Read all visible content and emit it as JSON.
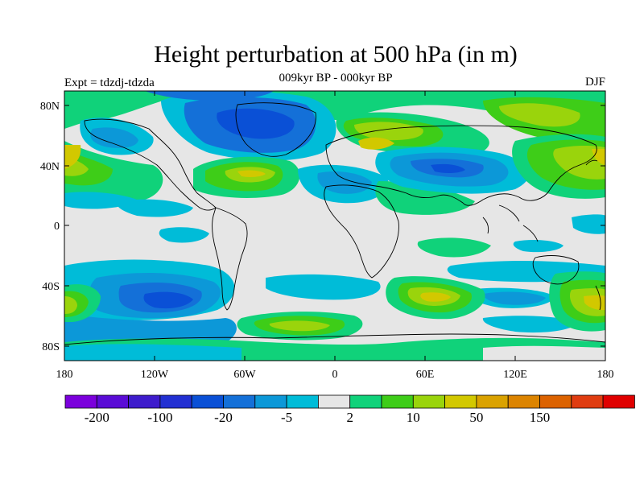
{
  "title": "Height perturbation at 500 hPa (in m)",
  "subtitle": "009kyr BP - 000kyr BP",
  "left_string": "Expt = tdzdj-tdzda",
  "right_string": "DJF",
  "lon_ticks": [
    "180",
    "120W",
    "60W",
    "0",
    "60E",
    "120E",
    "180"
  ],
  "lat_ticks": [
    "80N",
    "40N",
    "0",
    "40S",
    "80S"
  ],
  "colorbar": {
    "colors": [
      "#7b00dc",
      "#5a0cd6",
      "#3e1ccc",
      "#2230d2",
      "#0a50d6",
      "#1470d8",
      "#0c98d8",
      "#00bcd8",
      "#e6e6e6",
      "#10d27a",
      "#3ecd18",
      "#9ad40c",
      "#d2c800",
      "#daa200",
      "#dc8400",
      "#dc6200",
      "#e03c10",
      "#e00000"
    ],
    "labels": [
      {
        "text": "-200",
        "after_box": 1
      },
      {
        "text": "-100",
        "after_box": 3
      },
      {
        "text": "-20",
        "after_box": 5
      },
      {
        "text": "-5",
        "after_box": 7
      },
      {
        "text": "2",
        "after_box": 9
      },
      {
        "text": "10",
        "after_box": 11
      },
      {
        "text": "50",
        "after_box": 13
      },
      {
        "text": "150",
        "after_box": 15
      }
    ]
  }
}
